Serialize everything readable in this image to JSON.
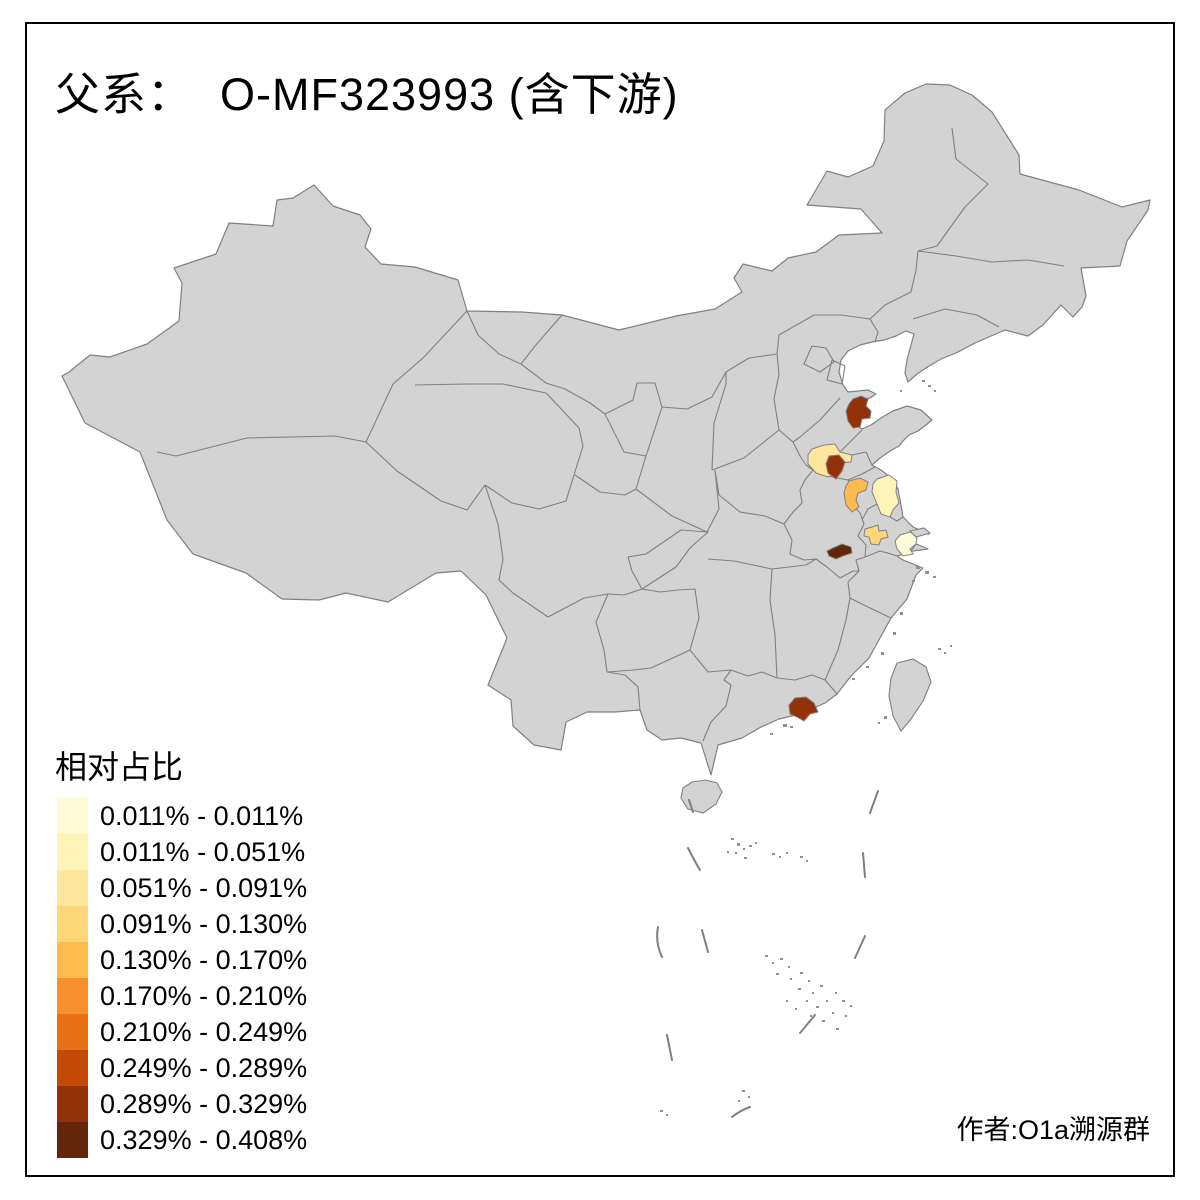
{
  "title": {
    "text": "父系：  O-MF323993 (含下游)"
  },
  "legend": {
    "title": "相对占比",
    "items": [
      {
        "label": "0.011% - 0.011%",
        "color": "#FFFBD7"
      },
      {
        "label": "0.011% - 0.051%",
        "color": "#FEF4B8"
      },
      {
        "label": "0.051% - 0.091%",
        "color": "#FEE79C"
      },
      {
        "label": "0.091% - 0.130%",
        "color": "#FDD777"
      },
      {
        "label": "0.130% - 0.170%",
        "color": "#FDBA4D"
      },
      {
        "label": "0.170% - 0.210%",
        "color": "#F78F2C"
      },
      {
        "label": "0.210% - 0.249%",
        "color": "#E97014"
      },
      {
        "label": "0.249% - 0.289%",
        "color": "#C24A04"
      },
      {
        "label": "0.289% - 0.329%",
        "color": "#923208"
      },
      {
        "label": "0.329% - 0.408%",
        "color": "#63260B"
      }
    ]
  },
  "attribution": {
    "text": "作者:O1a溯源群"
  },
  "map": {
    "background": "#FFFFFF",
    "land_color": "#D3D3D3",
    "border_color": "#808080",
    "frame_color": "#000000",
    "regions": [
      {
        "id": "region-1",
        "color": "#923208",
        "legend_bucket": "0.289% - 0.329%"
      },
      {
        "id": "region-2",
        "color": "#FEE79C",
        "legend_bucket": "0.051% - 0.091%"
      },
      {
        "id": "region-3",
        "color": "#923208",
        "legend_bucket": "0.289% - 0.329%"
      },
      {
        "id": "region-4",
        "color": "#FDBA4D",
        "legend_bucket": "0.130% - 0.170%"
      },
      {
        "id": "region-5",
        "color": "#FEF4B8",
        "legend_bucket": "0.011% - 0.051%"
      },
      {
        "id": "region-6",
        "color": "#FDD777",
        "legend_bucket": "0.091% - 0.130%"
      },
      {
        "id": "region-7",
        "color": "#FFFBD7",
        "legend_bucket": "0.011% - 0.011%"
      },
      {
        "id": "region-8",
        "color": "#63260B",
        "legend_bucket": "0.329% - 0.408%"
      },
      {
        "id": "region-9",
        "color": "#923208",
        "legend_bucket": "0.289% - 0.329%"
      }
    ]
  }
}
